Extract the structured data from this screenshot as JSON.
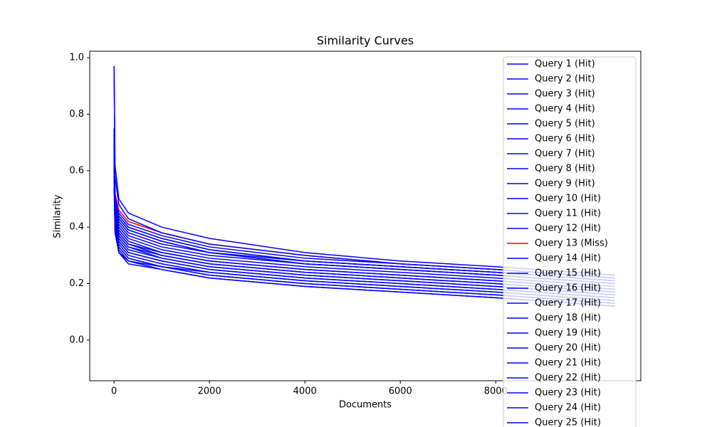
{
  "chart_data": {
    "type": "line",
    "title": "Similarity Curves",
    "x_label": "Documents",
    "y_label": "Similarity",
    "x": [
      0,
      20,
      100,
      300,
      1000,
      2000,
      4000,
      6000,
      8000,
      10500
    ],
    "xlim": [
      -510,
      11040
    ],
    "xticks": [
      0,
      2000,
      4000,
      6000,
      8000
    ],
    "ylim": [
      -0.144,
      1.023
    ],
    "yticks": [
      {
        "value": 0,
        "label": "0.0"
      },
      0.2,
      0.4,
      0.6,
      0.8,
      {
        "value": 1,
        "label": "1.0"
      }
    ],
    "legend": "upper right",
    "series": [
      {
        "name": "Query 1 (Hit)",
        "color": "#0000ff",
        "values": [
          0.97,
          0.62,
          0.5,
          0.45,
          0.4,
          0.36,
          0.31,
          0.28,
          0.26,
          0.23
        ]
      },
      {
        "name": "Query 2 (Hit)",
        "color": "#0000ff",
        "values": [
          0.65,
          0.45,
          0.37,
          0.33,
          0.3,
          0.27,
          0.24,
          0.22,
          0.2,
          0.17
        ]
      },
      {
        "name": "Query 3 (Hit)",
        "color": "#0000ff",
        "values": [
          0.6,
          0.42,
          0.34,
          0.3,
          0.27,
          0.24,
          0.21,
          0.19,
          0.17,
          0.14
        ]
      },
      {
        "name": "Query 4 (Hit)",
        "color": "#0000ff",
        "values": [
          0.7,
          0.5,
          0.44,
          0.4,
          0.36,
          0.32,
          0.28,
          0.26,
          0.24,
          0.21
        ]
      },
      {
        "name": "Query 5 (Hit)",
        "color": "#0000ff",
        "values": [
          0.58,
          0.4,
          0.32,
          0.28,
          0.26,
          0.23,
          0.2,
          0.18,
          0.16,
          0.13
        ]
      },
      {
        "name": "Query 6 (Hit)",
        "color": "#0000ff",
        "values": [
          0.68,
          0.48,
          0.41,
          0.37,
          0.33,
          0.3,
          0.27,
          0.25,
          0.23,
          0.2
        ]
      },
      {
        "name": "Query 7 (Hit)",
        "color": "#0000ff",
        "values": [
          0.62,
          0.44,
          0.36,
          0.32,
          0.29,
          0.26,
          0.23,
          0.21,
          0.19,
          0.16
        ]
      },
      {
        "name": "Query 8 (Hit)",
        "color": "#0000ff",
        "values": [
          0.75,
          0.52,
          0.45,
          0.41,
          0.37,
          0.33,
          0.29,
          0.27,
          0.25,
          0.22
        ]
      },
      {
        "name": "Query 9 (Hit)",
        "color": "#0000ff",
        "values": [
          0.57,
          0.39,
          0.31,
          0.28,
          0.25,
          0.22,
          0.19,
          0.17,
          0.15,
          0.12
        ]
      },
      {
        "name": "Query 10 (Hit)",
        "color": "#0000ff",
        "values": [
          0.66,
          0.46,
          0.39,
          0.35,
          0.31,
          0.28,
          0.25,
          0.23,
          0.21,
          0.18
        ]
      },
      {
        "name": "Query 11 (Hit)",
        "color": "#0000ff",
        "values": [
          0.72,
          0.51,
          0.43,
          0.39,
          0.35,
          0.31,
          0.27,
          0.25,
          0.23,
          0.2
        ]
      },
      {
        "name": "Query 12 (Hit)",
        "color": "#0000ff",
        "values": [
          0.61,
          0.43,
          0.35,
          0.31,
          0.28,
          0.25,
          0.22,
          0.2,
          0.18,
          0.15
        ]
      },
      {
        "name": "Query 13 (Miss)",
        "color": "#ff0000",
        "values": [
          0.7,
          0.52,
          0.46,
          0.42,
          0.38,
          0.34,
          0.3,
          0.27,
          0.25,
          0.22
        ]
      },
      {
        "name": "Query 14 (Hit)",
        "color": "#0000ff",
        "values": [
          0.64,
          0.45,
          0.38,
          0.34,
          0.3,
          0.27,
          0.24,
          0.22,
          0.2,
          0.17
        ]
      },
      {
        "name": "Query 15 (Hit)",
        "color": "#0000ff",
        "values": [
          0.97,
          0.58,
          0.48,
          0.43,
          0.38,
          0.34,
          0.3,
          0.27,
          0.25,
          0.22
        ]
      },
      {
        "name": "Query 16 (Hit)",
        "color": "#0000ff",
        "values": [
          0.59,
          0.41,
          0.33,
          0.29,
          0.26,
          0.24,
          0.21,
          0.19,
          0.17,
          0.14
        ]
      },
      {
        "name": "Query 17 (Hit)",
        "color": "#0000ff",
        "values": [
          0.69,
          0.49,
          0.42,
          0.38,
          0.34,
          0.31,
          0.27,
          0.25,
          0.23,
          0.2
        ]
      },
      {
        "name": "Query 18 (Hit)",
        "color": "#0000ff",
        "values": [
          0.63,
          0.44,
          0.37,
          0.33,
          0.29,
          0.26,
          0.23,
          0.21,
          0.19,
          0.16
        ]
      },
      {
        "name": "Query 19 (Hit)",
        "color": "#0000ff",
        "values": [
          0.73,
          0.51,
          0.44,
          0.4,
          0.36,
          0.32,
          0.28,
          0.26,
          0.24,
          0.21
        ]
      },
      {
        "name": "Query 20 (Hit)",
        "color": "#0000ff",
        "values": [
          0.56,
          0.38,
          0.31,
          0.27,
          0.25,
          0.22,
          0.19,
          0.17,
          0.15,
          0.12
        ]
      },
      {
        "name": "Query 21 (Hit)",
        "color": "#0000ff",
        "values": [
          0.67,
          0.47,
          0.4,
          0.36,
          0.32,
          0.29,
          0.26,
          0.24,
          0.22,
          0.19
        ]
      },
      {
        "name": "Query 22 (Hit)",
        "color": "#0000ff",
        "values": [
          0.6,
          0.42,
          0.35,
          0.31,
          0.28,
          0.25,
          0.22,
          0.2,
          0.18,
          0.15
        ]
      },
      {
        "name": "Query 23 (Hit)",
        "color": "#0000ff",
        "values": [
          0.71,
          0.5,
          0.43,
          0.39,
          0.35,
          0.31,
          0.28,
          0.26,
          0.24,
          0.21
        ]
      },
      {
        "name": "Query 24 (Hit)",
        "color": "#0000ff",
        "values": [
          0.65,
          0.46,
          0.38,
          0.34,
          0.31,
          0.28,
          0.25,
          0.23,
          0.21,
          0.18
        ]
      },
      {
        "name": "Query 25 (Hit)",
        "color": "#0000ff",
        "values": [
          0.58,
          0.4,
          0.33,
          0.29,
          0.26,
          0.23,
          0.2,
          0.18,
          0.16,
          0.13
        ]
      }
    ]
  }
}
